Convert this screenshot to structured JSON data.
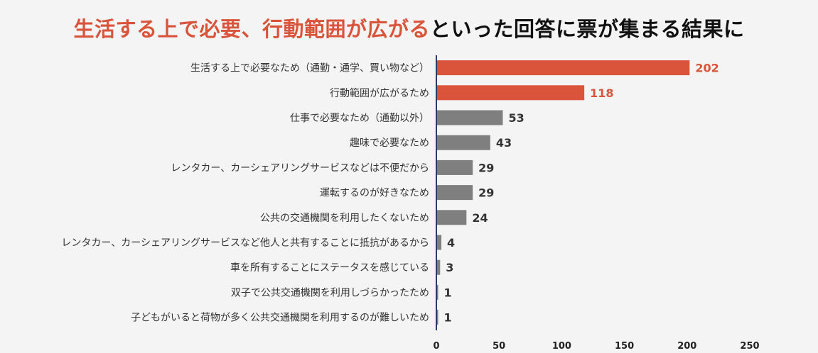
{
  "title": {
    "highlight": "生活する上で必要、行動範囲が広がる",
    "rest": "といった回答に票が集まる結果に"
  },
  "colors": {
    "highlight": "#d9543a",
    "normal": "#7f7f7f",
    "axis": "#2b3a67"
  },
  "chart_data": {
    "type": "bar",
    "orientation": "horizontal",
    "categories": [
      "生活する上で必要なため（通勤・通学、買い物など）",
      "行動範囲が広がるため",
      "仕事で必要なため（通勤以外）",
      "趣味で必要なため",
      "レンタカー、カーシェアリングサービスなどは不便だから",
      "運転するのが好きなため",
      "公共の交通機関を利用したくないため",
      "レンタカー、カーシェアリングサービスなど他人と共有することに抵抗があるから",
      "車を所有することにステータスを感じている",
      "双子で公共交通機関を利用しづらかったため",
      "子どもがいると荷物が多く公共交通機関を利用するのが難しいため"
    ],
    "values": [
      202,
      118,
      53,
      43,
      29,
      29,
      24,
      4,
      3,
      1,
      1
    ],
    "highlighted": [
      true,
      true,
      false,
      false,
      false,
      false,
      false,
      false,
      false,
      false,
      false
    ],
    "xlim": [
      0,
      250
    ],
    "xticks": [
      0,
      50,
      100,
      150,
      200,
      250
    ],
    "grid": false,
    "legend": "none"
  }
}
